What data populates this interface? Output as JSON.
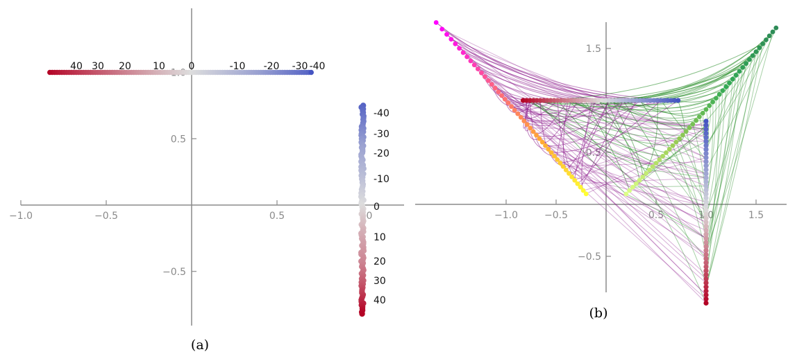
{
  "chart_data": [
    {
      "type": "scatter",
      "panel": "a",
      "caption": "(a)",
      "title": "",
      "xlabel": "",
      "ylabel": "",
      "xlim": [
        -1.0,
        1.0
      ],
      "ylim": [
        -0.8,
        1.3
      ],
      "x_ticks": [
        "−1.0",
        "−0.5",
        "0.5",
        "0"
      ],
      "y_ticks": [
        "1.0",
        "0.5",
        "−0.5"
      ],
      "colormap": "coolwarm",
      "colors": {
        "cold": "#3b4cc0",
        "neutral": "#dddddd",
        "warm": "#b40426"
      },
      "horizontal_series": {
        "label": "points on y = 1.0, colored by value",
        "value_labels": [
          "40",
          "30",
          "20",
          "10",
          "0",
          "-10",
          "-20",
          "-30",
          "-40"
        ],
        "points": [
          [
            -0.83,
            1.0,
            48
          ],
          [
            -0.75,
            1.0,
            42
          ],
          [
            -0.6,
            1.0,
            33
          ],
          [
            -0.38,
            1.0,
            20
          ],
          [
            -0.2,
            1.0,
            10
          ],
          [
            0.0,
            1.0,
            0
          ],
          [
            0.2,
            1.0,
            -10
          ],
          [
            0.4,
            1.0,
            -20
          ],
          [
            0.55,
            1.0,
            -30
          ],
          [
            0.7,
            1.0,
            -40
          ]
        ]
      },
      "vertical_series": {
        "label": "points on x = 1.0, colored by value",
        "value_labels": [
          "-40",
          "-30",
          "-20",
          "-10",
          "0",
          "10",
          "20",
          "30",
          "40"
        ],
        "points": [
          [
            1.0,
            0.75,
            -40
          ],
          [
            1.0,
            0.6,
            -30
          ],
          [
            1.0,
            0.45,
            -20
          ],
          [
            1.0,
            0.2,
            -10
          ],
          [
            1.0,
            0.0,
            0
          ],
          [
            1.0,
            -0.2,
            10
          ],
          [
            1.0,
            -0.45,
            20
          ],
          [
            1.0,
            -0.6,
            30
          ],
          [
            1.0,
            -0.82,
            48
          ]
        ]
      }
    },
    {
      "type": "scatter",
      "panel": "b",
      "caption": "(b)",
      "title": "",
      "xlabel": "",
      "ylabel": "",
      "xlim": [
        -1.8,
        1.8
      ],
      "ylim": [
        -0.9,
        1.8
      ],
      "x_ticks": [
        "−1.0",
        "−0.5",
        "0.5",
        "1.0",
        "1.5"
      ],
      "y_ticks": [
        "1.5",
        "0.5",
        "−0.5"
      ],
      "series": [
        {
          "role": "horizontal line of points",
          "colormap": "coolwarm",
          "x_range": [
            -0.83,
            0.72
          ],
          "y": 1.0
        },
        {
          "role": "vertical line of points",
          "colormap": "coolwarm",
          "x": 1.0,
          "y_range": [
            -0.95,
            0.8
          ]
        },
        {
          "role": "diagonal mapped points",
          "colors": [
            "#ff00ff",
            "#ff6680",
            "#ffaa33",
            "#ffff33"
          ],
          "from": [
            -1.7,
            1.75
          ],
          "to": [
            -0.2,
            0.1
          ]
        },
        {
          "role": "diagonal mapped points",
          "colors": [
            "#ddff88",
            "#99cc55",
            "#33aa55",
            "#2e8b57"
          ],
          "from": [
            0.2,
            0.1
          ],
          "to": [
            1.7,
            1.7
          ]
        }
      ],
      "connection_colors": {
        "purple": "#8b1a8b",
        "green": "#228b22"
      }
    }
  ]
}
